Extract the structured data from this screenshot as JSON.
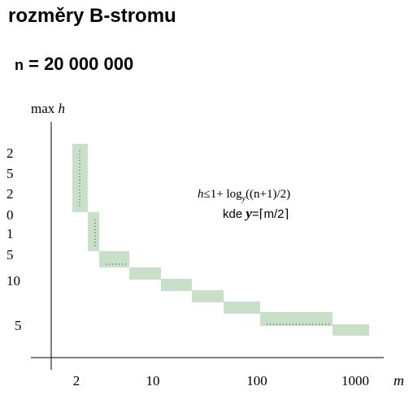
{
  "title": "rozměry B-stromu",
  "subtitle": {
    "var": "n",
    "rest": " = 20 000 000"
  },
  "y_axis_label": {
    "text": "max ",
    "var": "h"
  },
  "y_labels": [
    "2",
    "5",
    "2",
    "0",
    "1",
    "5",
    "10",
    "5"
  ],
  "x_labels": [
    "2",
    "10",
    "100",
    "1000"
  ],
  "x_axis_label": "m",
  "formula": {
    "h": "h",
    "rel": "≤1+ log",
    "sub": "y",
    "arg": "((n+1)/2)"
  },
  "formula2": {
    "kde": "kde ",
    "y": "y",
    "rest": "=⌈m/2⌉"
  }
}
